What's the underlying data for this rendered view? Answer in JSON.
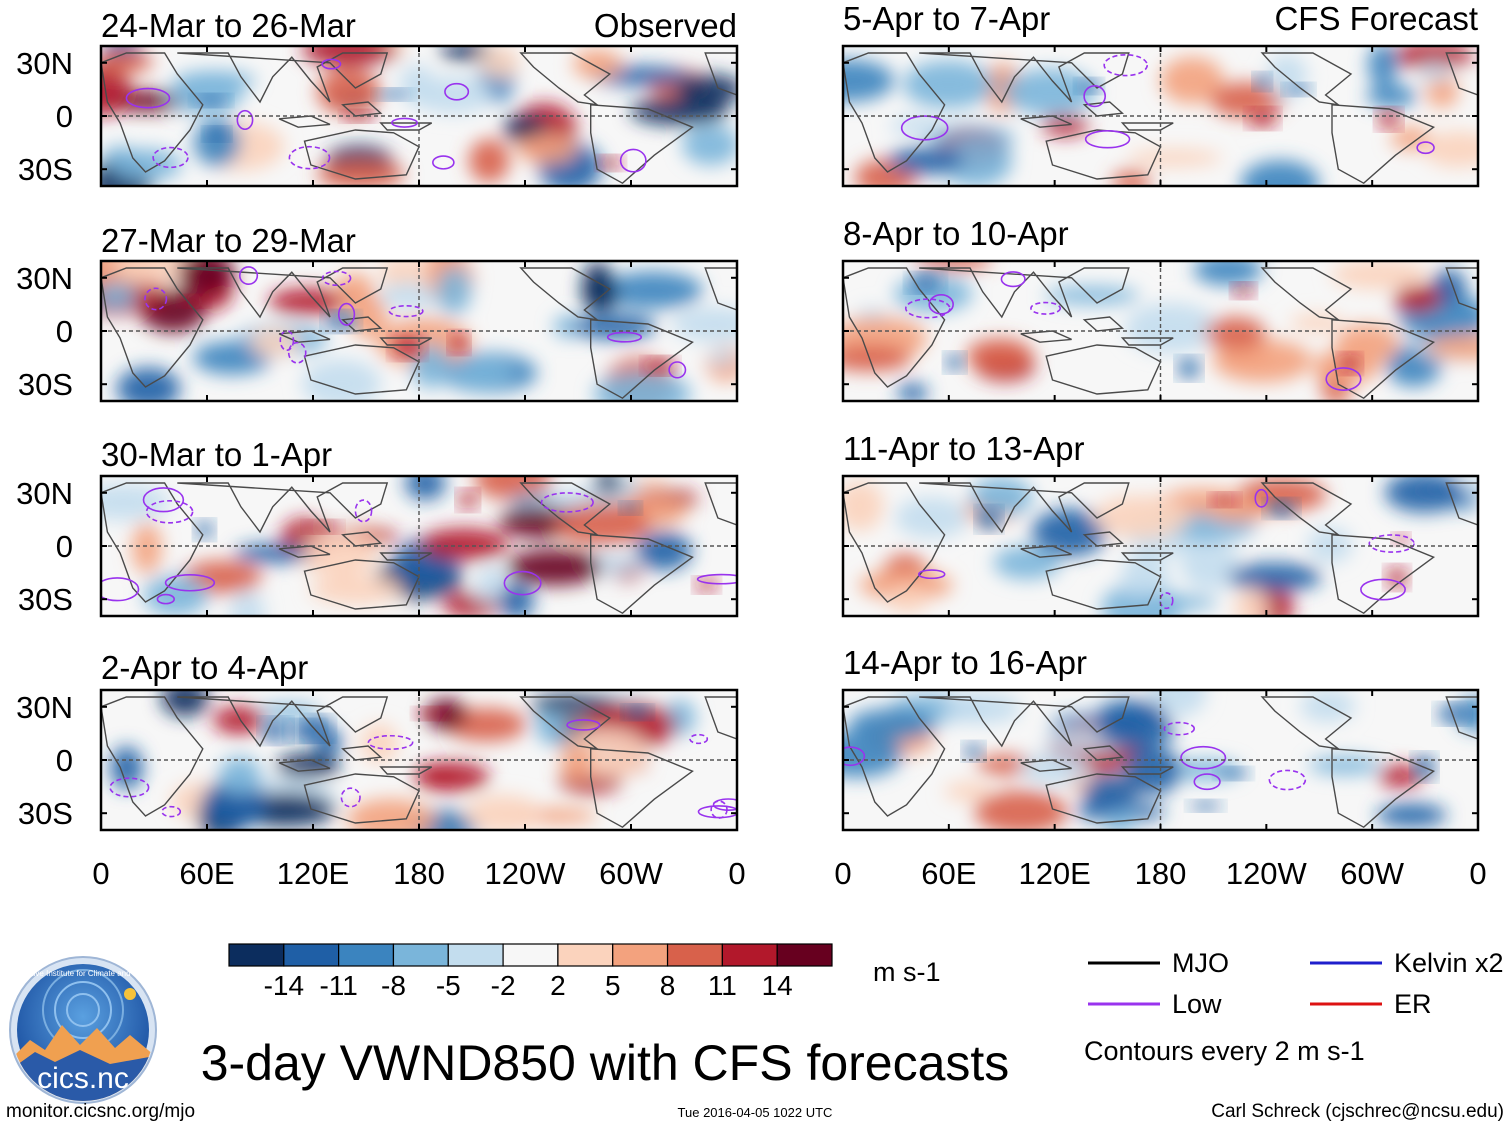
{
  "figure": {
    "main_title": "3-day VWND850 with CFS forecasts",
    "url": "monitor.cicsnc.org/mjo",
    "timestamp": "Tue 2016-04-05 1022 UTC",
    "author": "Carl Schreck (cjschrec@ncsu.edu)",
    "logo": {
      "name": "cics-logo",
      "label": "cics.nc",
      "ring_text": "Cooperative Institute for Climate and Satellites"
    },
    "colors": {
      "zero_line": "#555555",
      "coast": "#4a4a4a",
      "low_contour": "#9933ee"
    }
  },
  "chart_data": {
    "type": "heatmap",
    "variable": "VWND850",
    "units": "m s-1",
    "x_ticks": [
      "0",
      "60E",
      "120E",
      "180",
      "120W",
      "60W",
      "0"
    ],
    "y_ticks": [
      "30N",
      "0",
      "30S"
    ],
    "xlim": [
      0,
      360
    ],
    "ylim": [
      -40,
      40
    ],
    "colorbar": {
      "ticks": [
        "-14",
        "-11",
        "-8",
        "-5",
        "-2",
        "2",
        "5",
        "8",
        "11",
        "14"
      ],
      "colors": [
        "#0c2d5e",
        "#1f5fa6",
        "#3b84bf",
        "#7ab5da",
        "#c3ddee",
        "#f7f7f7",
        "#fbd3bd",
        "#f3a27e",
        "#d8614b",
        "#b2182b",
        "#67001f"
      ]
    },
    "legend": {
      "items": [
        {
          "label": "MJO",
          "color": "#000000"
        },
        {
          "label": "Kelvin x2",
          "color": "#1f1fcc"
        },
        {
          "label": "Low",
          "color": "#9933ee"
        },
        {
          "label": "ER",
          "color": "#dd1111"
        }
      ],
      "note": "Contours every 2 m s-1"
    },
    "panels": [
      {
        "title": "24-Mar to 26-Mar",
        "label": "Observed",
        "column": "observed"
      },
      {
        "title": "27-Mar to 29-Mar",
        "label": "",
        "column": "observed"
      },
      {
        "title": "30-Mar to 1-Apr",
        "label": "",
        "column": "observed"
      },
      {
        "title": "2-Apr to 4-Apr",
        "label": "",
        "column": "observed"
      },
      {
        "title": "5-Apr to 7-Apr",
        "label": "CFS Forecast",
        "column": "forecast"
      },
      {
        "title": "8-Apr to 10-Apr",
        "label": "",
        "column": "forecast"
      },
      {
        "title": "11-Apr to 13-Apr",
        "label": "",
        "column": "forecast"
      },
      {
        "title": "14-Apr to 16-Apr",
        "label": "",
        "column": "forecast"
      }
    ]
  }
}
